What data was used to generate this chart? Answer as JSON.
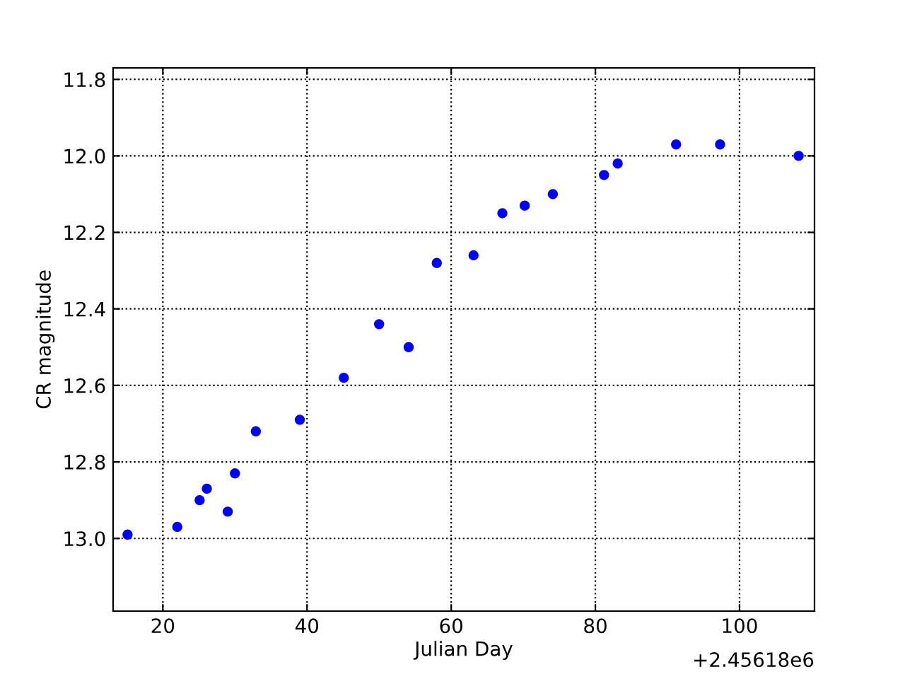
{
  "chart_data": {
    "type": "scatter",
    "xlabel": "Julian Day",
    "ylabel": "CR magnitude",
    "x": [
      15.1,
      22.0,
      25.1,
      26.1,
      29.0,
      30.0,
      32.9,
      39.0,
      45.1,
      50.0,
      54.1,
      58.0,
      63.1,
      67.1,
      70.2,
      74.1,
      81.2,
      83.1,
      91.2,
      97.3,
      108.2
    ],
    "series": [
      {
        "color": "#0000ff",
        "values": [
          12.99,
          12.97,
          12.9,
          12.87,
          12.93,
          12.83,
          12.72,
          12.69,
          12.58,
          12.44,
          12.5,
          12.28,
          12.26,
          12.15,
          12.13,
          12.1,
          12.05,
          12.02,
          11.97,
          11.97,
          12.0
        ]
      }
    ],
    "xlim": [
      13.1,
      110.4
    ],
    "ylim": [
      13.19,
      11.77
    ],
    "xticks": [
      20,
      40,
      60,
      80,
      100
    ],
    "yticks": [
      {
        "value": 11.8,
        "label": "11.8"
      },
      {
        "value": 12.0,
        "label": "12.0"
      },
      {
        "value": 12.2,
        "label": "12.2"
      },
      {
        "value": 12.4,
        "label": "12.4"
      },
      {
        "value": 12.6,
        "label": "12.6"
      },
      {
        "value": 12.8,
        "label": "12.8"
      },
      {
        "value": 13.0,
        "label": "13.0"
      }
    ],
    "annotations": [
      "+2.45618e6"
    ],
    "grid": true,
    "marker": "circle"
  }
}
